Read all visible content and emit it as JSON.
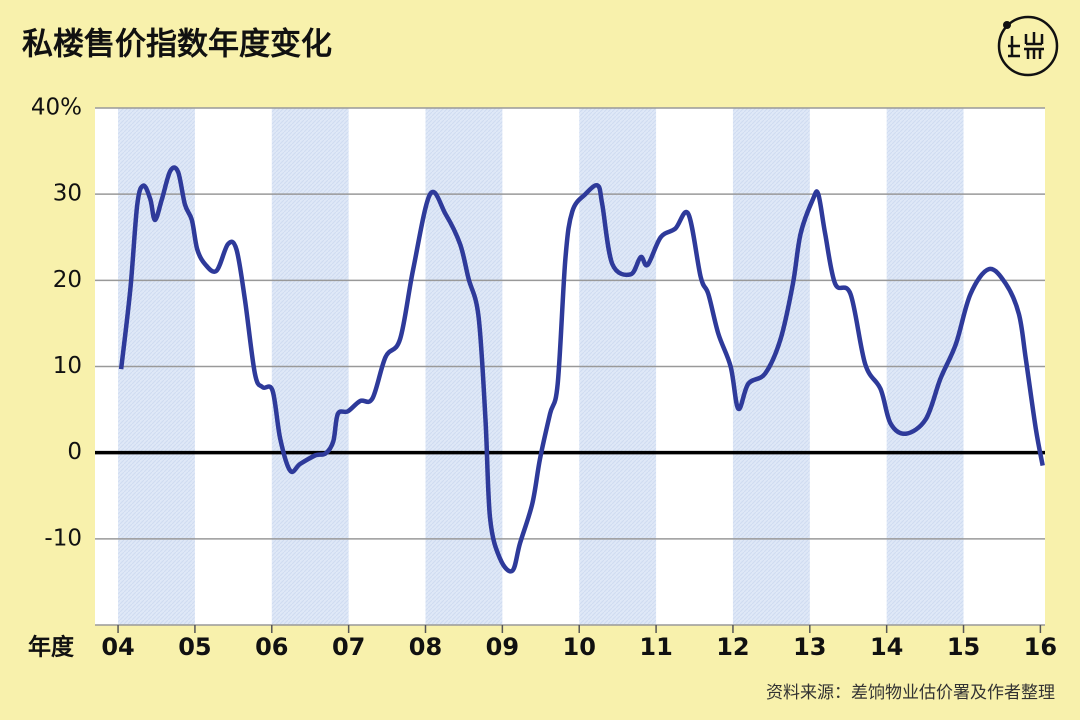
{
  "chart_data": {
    "type": "line",
    "title": "私楼售价指数年度变化",
    "source": "资料来源：差饷物业估价署及作者整理",
    "x_label": "年度",
    "x": [
      2004.04,
      2004.16,
      2004.25,
      2004.33,
      2004.42,
      2004.48,
      2004.57,
      2004.68,
      2004.78,
      2004.87,
      2004.96,
      2005.03,
      2005.13,
      2005.28,
      2005.43,
      2005.54,
      2005.65,
      2005.78,
      2005.88,
      2006.01,
      2006.11,
      2006.24,
      2006.37,
      2006.57,
      2006.7,
      2006.8,
      2006.86,
      2006.99,
      2007.15,
      2007.31,
      2007.48,
      2007.67,
      2007.84,
      2008.06,
      2008.26,
      2008.45,
      2008.56,
      2008.69,
      2008.78,
      2008.84,
      2008.97,
      2009.13,
      2009.23,
      2009.39,
      2009.49,
      2009.62,
      2009.72,
      2009.82,
      2009.91,
      2010.08,
      2010.24,
      2010.3,
      2010.43,
      2010.67,
      2010.8,
      2010.89,
      2011.06,
      2011.25,
      2011.42,
      2011.58,
      2011.68,
      2011.81,
      2011.97,
      2012.07,
      2012.2,
      2012.42,
      2012.62,
      2012.78,
      2012.88,
      2013.04,
      2013.11,
      2013.2,
      2013.33,
      2013.53,
      2013.72,
      2013.92,
      2014.05,
      2014.25,
      2014.51,
      2014.7,
      2014.9,
      2015.09,
      2015.33,
      2015.55,
      2015.72,
      2015.81,
      2015.94,
      2016.03
    ],
    "series": [
      {
        "name": "私楼售价指数年度变化",
        "color": "#2e3a9a",
        "values": [
          9.7,
          19,
          28.8,
          31,
          29.4,
          27,
          29.4,
          32.7,
          32.6,
          28.8,
          27,
          23.6,
          21.9,
          21.1,
          24.2,
          23.6,
          17.8,
          9.2,
          7.6,
          7.2,
          1.6,
          -2.1,
          -1.3,
          -0.3,
          -0.1,
          1.3,
          4.5,
          4.8,
          6,
          6.3,
          11.1,
          13.2,
          21.3,
          30,
          27.7,
          24.2,
          20.2,
          15.8,
          3.9,
          -7.6,
          -12.3,
          -13.7,
          -10.5,
          -5.9,
          -0.7,
          4.5,
          8,
          22.5,
          28,
          30,
          31,
          28.8,
          21.9,
          20.7,
          22.7,
          21.8,
          25,
          26,
          27.7,
          20.4,
          18.4,
          13.8,
          10,
          5.1,
          8,
          9.2,
          13.2,
          19.6,
          25.4,
          29.4,
          30,
          25.4,
          19.6,
          18.4,
          10.3,
          7.4,
          3.4,
          2.2,
          3.9,
          8.6,
          12.6,
          18.4,
          21.3,
          19.6,
          16.1,
          10.9,
          2.8,
          -1.5
        ]
      }
    ],
    "xlim": [
      2003.7,
      2016.06
    ],
    "xticks": [
      {
        "value": 2004,
        "label": "04"
      },
      {
        "value": 2005,
        "label": "05"
      },
      {
        "value": 2006,
        "label": "06"
      },
      {
        "value": 2007,
        "label": "07"
      },
      {
        "value": 2008,
        "label": "08"
      },
      {
        "value": 2009,
        "label": "09"
      },
      {
        "value": 2010,
        "label": "10"
      },
      {
        "value": 2011,
        "label": "11"
      },
      {
        "value": 2012,
        "label": "12"
      },
      {
        "value": 2013,
        "label": "13"
      },
      {
        "value": 2014,
        "label": "14"
      },
      {
        "value": 2015,
        "label": "15"
      },
      {
        "value": 2016,
        "label": "16"
      }
    ],
    "ylim": [
      -20,
      40
    ],
    "yticks": [
      -10,
      0,
      10,
      20,
      30,
      {
        "value": 40,
        "label": "40%"
      }
    ],
    "grid": true
  }
}
